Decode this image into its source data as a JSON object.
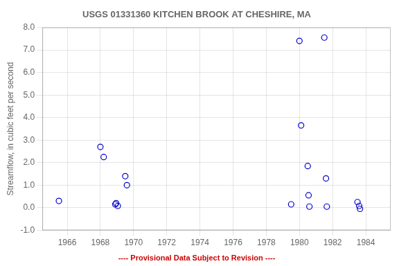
{
  "chart_data": {
    "type": "scatter",
    "title": "USGS 01331360 KITCHEN BROOK AT CHESHIRE, MA",
    "y_label": "Streamflow, in cubic feet per second",
    "x": [
      1965.5,
      1968.0,
      1968.2,
      1968.9,
      1968.95,
      1969.05,
      1969.5,
      1969.6,
      1979.5,
      1980.0,
      1980.1,
      1980.5,
      1980.55,
      1980.6,
      1981.5,
      1981.6,
      1981.65,
      1983.5,
      1983.6,
      1983.65
    ],
    "values": [
      0.3,
      2.7,
      2.25,
      0.15,
      0.2,
      0.08,
      1.4,
      1.0,
      0.15,
      7.4,
      3.65,
      1.85,
      0.55,
      0.05,
      7.55,
      1.3,
      0.05,
      0.25,
      0.08,
      -0.05
    ],
    "color": "#0000CC",
    "marker": "circle",
    "xlim": [
      1964.5,
      1985.5
    ],
    "ylim": [
      -1.0,
      8.0
    ],
    "xticks": [
      1966,
      1968,
      1970,
      1972,
      1974,
      1976,
      1978,
      1980,
      1982,
      1984
    ],
    "yticks": [
      {
        "value": -1.0,
        "label": "-1.0"
      },
      {
        "value": 0.0,
        "label": "0.0"
      },
      {
        "value": 1.0,
        "label": "1.0"
      },
      {
        "value": 2.0,
        "label": "2.0"
      },
      {
        "value": 3.0,
        "label": "3.0"
      },
      {
        "value": 4.0,
        "label": "4.0"
      },
      {
        "value": 5.0,
        "label": "5.0"
      },
      {
        "value": 6.0,
        "label": "6.0"
      },
      {
        "value": 7.0,
        "label": "7.0"
      },
      {
        "value": 8.0,
        "label": "8.0"
      }
    ],
    "grid": true,
    "annotations": [
      {
        "text": "---- Provisional Data Subject to Revision ----",
        "color": "#CC0000"
      }
    ]
  }
}
